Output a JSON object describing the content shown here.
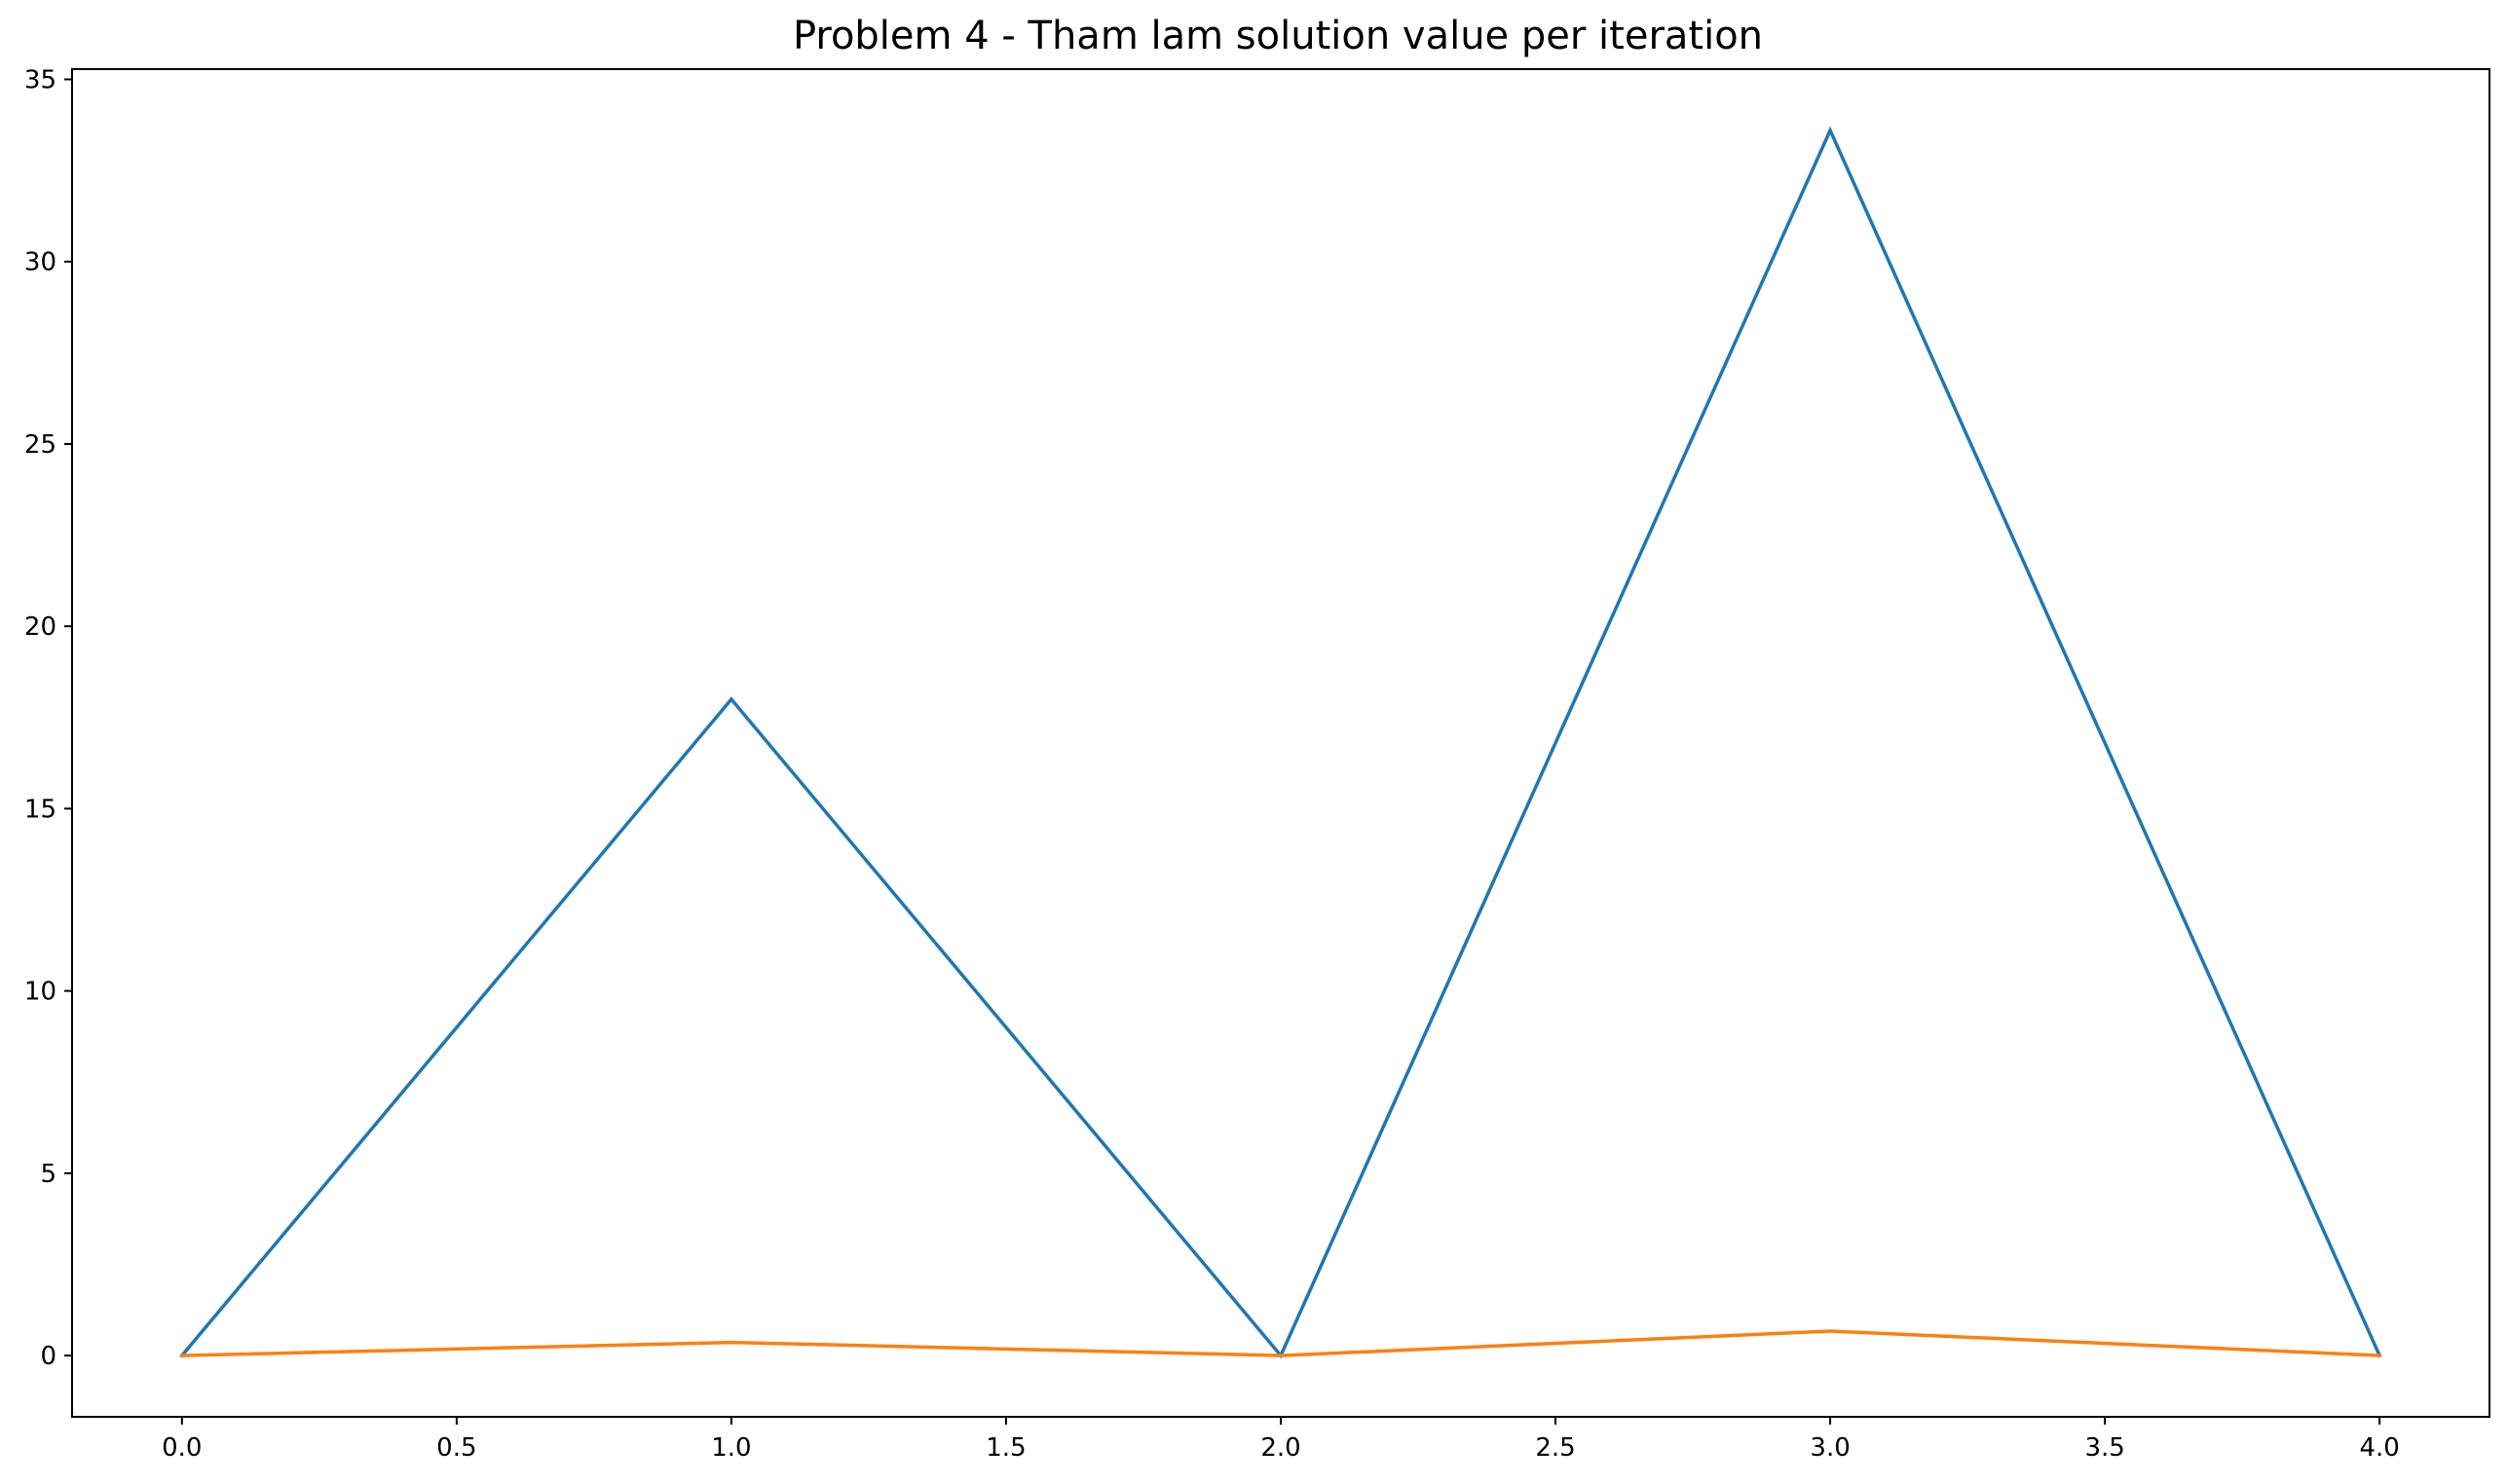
{
  "chart_data": {
    "type": "line",
    "title": "Problem 4 - Tham lam solution value per iteration",
    "xlabel": "",
    "ylabel": "",
    "xlim": [
      -0.2,
      4.2
    ],
    "ylim": [
      -1.68,
      35.28
    ],
    "grid": false,
    "xticks": [
      0.0,
      0.5,
      1.0,
      1.5,
      2.0,
      2.5,
      3.0,
      3.5,
      4.0
    ],
    "xtick_labels": [
      "0.0",
      "0.5",
      "1.0",
      "1.5",
      "2.0",
      "2.5",
      "3.0",
      "3.5",
      "4.0"
    ],
    "yticks": [
      0,
      5,
      10,
      15,
      20,
      25,
      30,
      35
    ],
    "ytick_labels": [
      "0",
      "5",
      "10",
      "15",
      "20",
      "25",
      "30",
      "35"
    ],
    "x": [
      0,
      1,
      2,
      3,
      4
    ],
    "series": [
      {
        "values": [
          0,
          18,
          0,
          33.6,
          0
        ],
        "color": "#1f77b4"
      },
      {
        "values": [
          0,
          0.36,
          0,
          0.67,
          0
        ],
        "color": "#ff7f0e"
      }
    ]
  }
}
